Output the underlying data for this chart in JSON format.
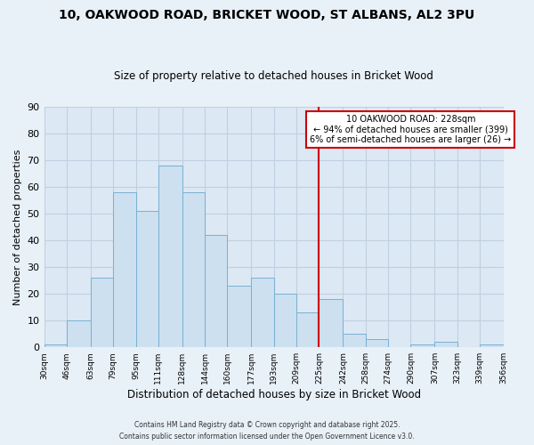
{
  "title": "10, OAKWOOD ROAD, BRICKET WOOD, ST ALBANS, AL2 3PU",
  "subtitle": "Size of property relative to detached houses in Bricket Wood",
  "xlabel": "Distribution of detached houses by size in Bricket Wood",
  "ylabel": "Number of detached properties",
  "bar_color": "#cce0f0",
  "bar_edge_color": "#7ab0d4",
  "background_color": "#dce8f4",
  "grid_color": "#c0d0e0",
  "fig_background": "#e8f0f8",
  "vline_x": 225,
  "vline_color": "#cc0000",
  "bins": [
    30,
    46,
    63,
    79,
    95,
    111,
    128,
    144,
    160,
    177,
    193,
    209,
    225,
    242,
    258,
    274,
    290,
    307,
    323,
    339,
    356
  ],
  "counts": [
    1,
    10,
    26,
    58,
    51,
    68,
    58,
    42,
    23,
    26,
    20,
    13,
    18,
    5,
    3,
    0,
    1,
    2,
    0,
    1
  ],
  "tick_labels": [
    "30sqm",
    "46sqm",
    "63sqm",
    "79sqm",
    "95sqm",
    "111sqm",
    "128sqm",
    "144sqm",
    "160sqm",
    "177sqm",
    "193sqm",
    "209sqm",
    "225sqm",
    "242sqm",
    "258sqm",
    "274sqm",
    "290sqm",
    "307sqm",
    "323sqm",
    "339sqm",
    "356sqm"
  ],
  "ylim": [
    0,
    90
  ],
  "yticks": [
    0,
    10,
    20,
    30,
    40,
    50,
    60,
    70,
    80,
    90
  ],
  "annotation_title": "10 OAKWOOD ROAD: 228sqm",
  "annotation_line1": "← 94% of detached houses are smaller (399)",
  "annotation_line2": "6% of semi-detached houses are larger (26) →",
  "footer1": "Contains HM Land Registry data © Crown copyright and database right 2025.",
  "footer2": "Contains public sector information licensed under the Open Government Licence v3.0."
}
